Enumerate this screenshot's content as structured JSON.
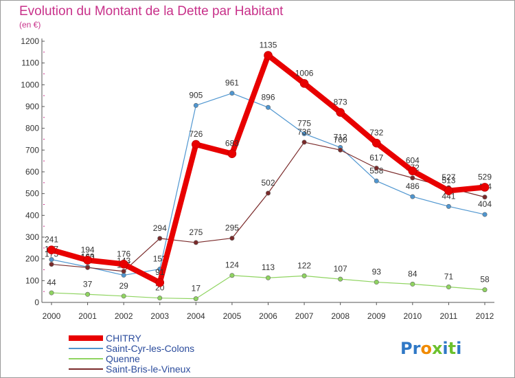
{
  "chart_data": {
    "type": "line",
    "title": "Evolution du Montant de la Dette par Habitant",
    "subtitle": "(en €)",
    "xlabel": "",
    "ylabel": "",
    "ylim": [
      0,
      1200
    ],
    "yticks": [
      0,
      100,
      200,
      300,
      400,
      500,
      600,
      700,
      800,
      900,
      1000,
      1100,
      1200
    ],
    "categories": [
      "2000",
      "2001",
      "2002",
      "2003",
      "2004",
      "2005",
      "2006",
      "2007",
      "2008",
      "2009",
      "2010",
      "2011",
      "2012"
    ],
    "grid": false,
    "legend_position": "bottom-left",
    "series": [
      {
        "name": "Saint-Cyr-les-Colons",
        "color": "#4f96d0",
        "values": [
          197,
          163,
          125,
          153,
          905,
          961,
          896,
          775,
          712,
          558,
          486,
          441,
          404
        ]
      },
      {
        "name": "Quenne",
        "color": "#8fd460",
        "values": [
          44,
          37,
          29,
          20,
          17,
          124,
          113,
          122,
          107,
          93,
          84,
          71,
          58
        ]
      },
      {
        "name": "Saint-Bris-le-Vineux",
        "color": "#7a2a2a",
        "values": [
          175,
          160,
          143,
          294,
          275,
          295,
          502,
          736,
          700,
          617,
          572,
          527,
          484
        ]
      },
      {
        "name": "CHITRY",
        "color": "#e80000",
        "values": [
          241,
          194,
          176,
          91,
          726,
          683,
          1135,
          1006,
          873,
          732,
          604,
          513,
          529
        ]
      }
    ]
  },
  "brand": {
    "text": "Proxiti"
  }
}
